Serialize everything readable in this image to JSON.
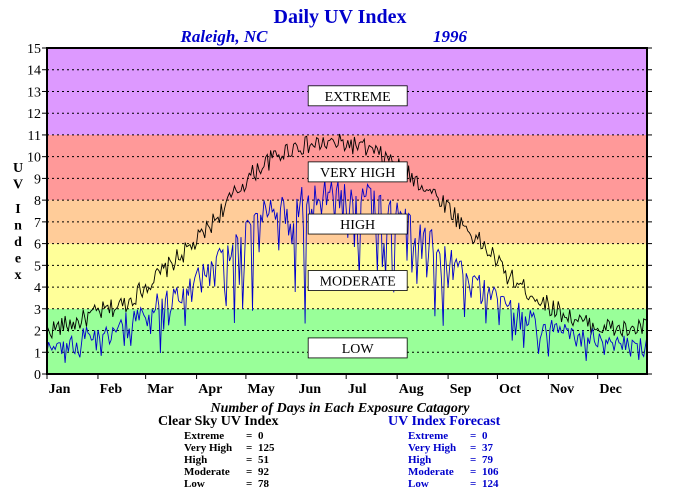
{
  "chart_data": {
    "type": "line",
    "title": "Daily UV Index",
    "location": "Raleigh, NC",
    "year": "1996",
    "ylabel": "UV Index",
    "ylim": [
      0,
      15
    ],
    "yticks": [
      0,
      1,
      2,
      3,
      4,
      5,
      6,
      7,
      8,
      9,
      10,
      11,
      12,
      13,
      14,
      15
    ],
    "xlim": [
      1,
      366
    ],
    "months": [
      "Jan",
      "Feb",
      "Mar",
      "Apr",
      "May",
      "Jun",
      "Jul",
      "Aug",
      "Sep",
      "Oct",
      "Nov",
      "Dec"
    ],
    "month_days": [
      1,
      32,
      61,
      92,
      122,
      153,
      183,
      214,
      245,
      275,
      306,
      336
    ],
    "grid": true,
    "bands": [
      {
        "label": "LOW",
        "from": 0,
        "to": 3,
        "color": "#99ff99"
      },
      {
        "label": "MODERATE",
        "from": 3,
        "to": 6,
        "color": "#ffff99"
      },
      {
        "label": "HIGH",
        "from": 6,
        "to": 8,
        "color": "#ffcc99"
      },
      {
        "label": "VERY HIGH",
        "from": 8,
        "to": 11,
        "color": "#ff9999"
      },
      {
        "label": "EXTREME",
        "from": 11,
        "to": 15,
        "color": "#dd99ff"
      }
    ],
    "band_label_levels": {
      "LOW": 1.2,
      "MODERATE": 4.3,
      "HIGH": 6.9,
      "VERY HIGH": 9.3,
      "EXTREME": 12.8
    },
    "series": [
      {
        "name": "Clear Sky UV Index",
        "color": "#000000",
        "x": [
          1,
          10,
          20,
          31,
          40,
          50,
          60,
          70,
          80,
          91,
          100,
          110,
          121,
          130,
          140,
          152,
          160,
          170,
          182,
          190,
          200,
          213,
          220,
          230,
          244,
          250,
          260,
          274,
          280,
          290,
          305,
          315,
          325,
          335,
          345,
          355,
          366
        ],
        "values": [
          2.0,
          2.2,
          2.4,
          2.8,
          3.0,
          3.3,
          4.0,
          4.6,
          5.3,
          6.0,
          6.8,
          7.8,
          8.8,
          9.5,
          10.0,
          10.5,
          10.5,
          10.6,
          10.6,
          10.5,
          10.2,
          9.7,
          9.2,
          8.7,
          7.8,
          7.2,
          6.4,
          5.3,
          4.6,
          4.0,
          3.2,
          2.8,
          2.4,
          2.2,
          2.1,
          2.0,
          2.2
        ]
      },
      {
        "name": "UV Index Forecast",
        "color": "#0000cc",
        "x": [
          1,
          10,
          20,
          31,
          40,
          50,
          60,
          70,
          80,
          91,
          100,
          110,
          121,
          130,
          140,
          152,
          160,
          170,
          182,
          190,
          200,
          213,
          220,
          230,
          244,
          250,
          260,
          274,
          280,
          290,
          305,
          315,
          325,
          335,
          345,
          355,
          366
        ],
        "values": [
          1.5,
          1.7,
          1.9,
          2.1,
          2.3,
          2.7,
          3.2,
          3.7,
          4.2,
          4.8,
          5.5,
          6.4,
          7.0,
          7.7,
          8.0,
          8.6,
          8.7,
          8.8,
          8.9,
          8.8,
          8.5,
          8.0,
          7.6,
          7.0,
          6.0,
          5.5,
          4.8,
          4.0,
          3.5,
          3.0,
          2.5,
          2.2,
          2.0,
          1.8,
          1.7,
          1.6,
          1.7
        ]
      }
    ]
  },
  "subtitle_counts": "Number of Days in Each Exposure Catagory",
  "stats": [
    {
      "title": "Clear Sky UV Index",
      "color": "#000000",
      "rows": [
        {
          "label": "Extreme",
          "eq": "=",
          "value": "0"
        },
        {
          "label": "Very High",
          "eq": "=",
          "value": "125"
        },
        {
          "label": "High",
          "eq": "=",
          "value": "51"
        },
        {
          "label": "Moderate",
          "eq": "=",
          "value": "92"
        },
        {
          "label": "Low",
          "eq": "=",
          "value": "78"
        }
      ]
    },
    {
      "title": "UV Index Forecast",
      "color": "#0000cc",
      "rows": [
        {
          "label": "Extreme",
          "eq": "=",
          "value": "0"
        },
        {
          "label": "Very High",
          "eq": "=",
          "value": "37"
        },
        {
          "label": "High",
          "eq": "=",
          "value": "79"
        },
        {
          "label": "Moderate",
          "eq": "=",
          "value": "106"
        },
        {
          "label": "Low",
          "eq": "=",
          "value": "124"
        }
      ]
    }
  ]
}
